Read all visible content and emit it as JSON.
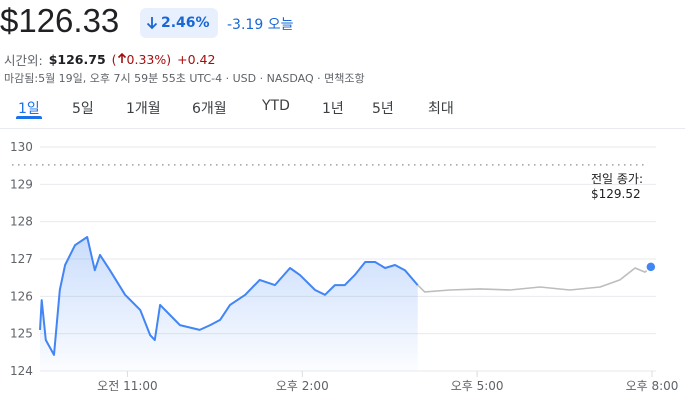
{
  "header": {
    "price": "$126.33",
    "change_pct": "2.46%",
    "change_abs": "-3.19",
    "change_period": "오늘",
    "after_hours_label": "시간외:",
    "after_hours_price": "$126.75",
    "after_hours_pct": "0.33%",
    "after_hours_change": "+0.42",
    "info": "마감됨:5월 19일, 오후 7시 59분 55초 UTC-4 · USD · NASDAQ · 면책조항"
  },
  "tabs": [
    "1일",
    "5일",
    "1개월",
    "6개월",
    "YTD",
    "1년",
    "5년",
    "최대"
  ],
  "chart_data": {
    "type": "line",
    "xlim": [
      9.5,
      20
    ],
    "xticks": [
      {
        "value": 11,
        "label": "오전 11:00"
      },
      {
        "value": 14,
        "label": "오후 2:00"
      },
      {
        "value": 17,
        "label": "오후 5:00"
      },
      {
        "value": 20,
        "label": "오후 8:00"
      }
    ],
    "ylim": [
      124,
      130
    ],
    "yticks": [
      124,
      125,
      126,
      127,
      128,
      129,
      130
    ],
    "grid": true,
    "reference_line": {
      "name": "전일 종가:",
      "value": 129.52,
      "label": "$129.52",
      "color": "#9aa0a6"
    },
    "series": [
      {
        "color": "#4285f4",
        "fill": true,
        "x": [
          9.5,
          9.53,
          9.6,
          9.74,
          9.84,
          9.93,
          10.1,
          10.31,
          10.44,
          10.53,
          10.7,
          10.96,
          11.22,
          11.39,
          11.47,
          11.56,
          11.73,
          11.9,
          12.24,
          12.42,
          12.59,
          12.76,
          13.02,
          13.27,
          13.53,
          13.79,
          13.96,
          14.22,
          14.39,
          14.56,
          14.73,
          14.9,
          15.08,
          15.25,
          15.42,
          15.59,
          15.76,
          15.98
        ],
        "values": [
          125.1,
          125.9,
          124.83,
          124.43,
          126.17,
          126.84,
          127.37,
          127.59,
          126.7,
          127.11,
          126.7,
          126.04,
          125.63,
          124.96,
          124.83,
          125.77,
          125.5,
          125.23,
          125.1,
          125.23,
          125.37,
          125.77,
          126.04,
          126.44,
          126.3,
          126.76,
          126.57,
          126.17,
          126.04,
          126.3,
          126.3,
          126.57,
          126.92,
          126.92,
          126.76,
          126.84,
          126.7,
          126.3
        ]
      },
      {
        "color": "#bdbdbd",
        "fill": false,
        "end_marker": true,
        "x": [
          15.98,
          16.1,
          16.53,
          17.05,
          17.56,
          18.08,
          18.59,
          19.11,
          19.45,
          19.71,
          19.88,
          19.98
        ],
        "values": [
          126.3,
          126.12,
          126.17,
          126.2,
          126.17,
          126.25,
          126.17,
          126.25,
          126.44,
          126.76,
          126.65,
          126.79
        ]
      }
    ]
  }
}
